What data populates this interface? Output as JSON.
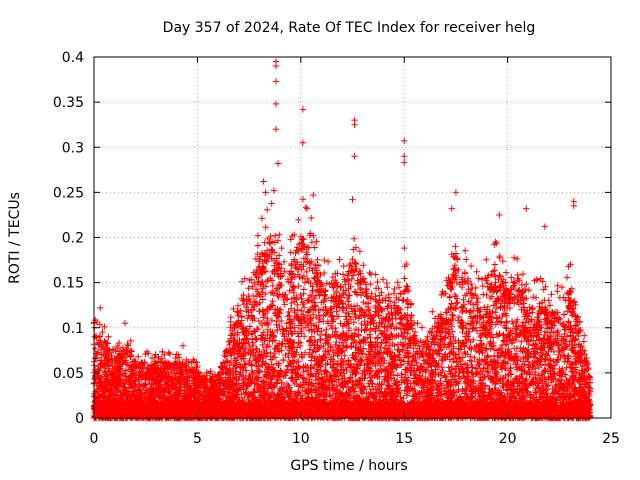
{
  "chart_data": {
    "type": "scatter",
    "title": "Day 357 of 2024, Rate Of TEC Index for receiver helg",
    "xlabel": "GPS time / hours",
    "ylabel": "ROTI / TECUs",
    "xlim": [
      0,
      25
    ],
    "ylim": [
      0,
      0.4
    ],
    "xticks": [
      "0",
      "5",
      "10",
      "15",
      "20",
      "25"
    ],
    "yticks": [
      "0",
      "0.05",
      "0.1",
      "0.15",
      "0.2",
      "0.25",
      "0.3",
      "0.35",
      "0.4"
    ],
    "grid": true,
    "marker": "plus",
    "color": "#ff0000",
    "notable_points": [
      {
        "x": 8.8,
        "y": 0.39
      },
      {
        "x": 8.8,
        "y": 0.395
      },
      {
        "x": 8.8,
        "y": 0.373
      },
      {
        "x": 8.8,
        "y": 0.348
      },
      {
        "x": 8.8,
        "y": 0.32
      },
      {
        "x": 8.9,
        "y": 0.282
      },
      {
        "x": 8.7,
        "y": 0.252
      },
      {
        "x": 10.1,
        "y": 0.342
      },
      {
        "x": 10.1,
        "y": 0.305
      },
      {
        "x": 12.6,
        "y": 0.33
      },
      {
        "x": 12.6,
        "y": 0.325
      },
      {
        "x": 12.6,
        "y": 0.29
      },
      {
        "x": 15.0,
        "y": 0.307
      },
      {
        "x": 15.0,
        "y": 0.29
      },
      {
        "x": 15.0,
        "y": 0.283
      },
      {
        "x": 17.5,
        "y": 0.25
      },
      {
        "x": 20.9,
        "y": 0.232
      },
      {
        "x": 23.2,
        "y": 0.24
      },
      {
        "x": 23.2,
        "y": 0.235
      },
      {
        "x": 8.2,
        "y": 0.262
      },
      {
        "x": 8.3,
        "y": 0.25
      },
      {
        "x": 10.6,
        "y": 0.247
      },
      {
        "x": 10.3,
        "y": 0.232
      },
      {
        "x": 12.5,
        "y": 0.242
      },
      {
        "x": 17.3,
        "y": 0.232
      },
      {
        "x": 19.6,
        "y": 0.225
      },
      {
        "x": 21.8,
        "y": 0.212
      },
      {
        "x": 1.5,
        "y": 0.105
      },
      {
        "x": 0.3,
        "y": 0.122
      },
      {
        "x": 0.0,
        "y": 0.105
      },
      {
        "x": 4.3,
        "y": 0.08
      },
      {
        "x": 3.4,
        "y": 0.07
      }
    ],
    "envelope": [
      {
        "x": 0.0,
        "ytop": 0.09
      },
      {
        "x": 0.5,
        "ytop": 0.085
      },
      {
        "x": 1.0,
        "ytop": 0.06
      },
      {
        "x": 1.5,
        "ytop": 0.08
      },
      {
        "x": 2.0,
        "ytop": 0.06
      },
      {
        "x": 3.0,
        "ytop": 0.06
      },
      {
        "x": 4.0,
        "ytop": 0.06
      },
      {
        "x": 5.0,
        "ytop": 0.05
      },
      {
        "x": 5.5,
        "ytop": 0.04
      },
      {
        "x": 6.0,
        "ytop": 0.045
      },
      {
        "x": 6.5,
        "ytop": 0.08
      },
      {
        "x": 7.0,
        "ytop": 0.12
      },
      {
        "x": 7.5,
        "ytop": 0.14
      },
      {
        "x": 8.0,
        "ytop": 0.17
      },
      {
        "x": 8.5,
        "ytop": 0.2
      },
      {
        "x": 9.0,
        "ytop": 0.17
      },
      {
        "x": 9.5,
        "ytop": 0.16
      },
      {
        "x": 10.0,
        "ytop": 0.2
      },
      {
        "x": 10.5,
        "ytop": 0.18
      },
      {
        "x": 11.0,
        "ytop": 0.14
      },
      {
        "x": 11.5,
        "ytop": 0.15
      },
      {
        "x": 12.0,
        "ytop": 0.14
      },
      {
        "x": 12.5,
        "ytop": 0.17
      },
      {
        "x": 13.0,
        "ytop": 0.15
      },
      {
        "x": 13.5,
        "ytop": 0.13
      },
      {
        "x": 14.0,
        "ytop": 0.13
      },
      {
        "x": 14.5,
        "ytop": 0.12
      },
      {
        "x": 15.0,
        "ytop": 0.16
      },
      {
        "x": 15.5,
        "ytop": 0.09
      },
      {
        "x": 16.0,
        "ytop": 0.08
      },
      {
        "x": 16.5,
        "ytop": 0.1
      },
      {
        "x": 17.0,
        "ytop": 0.12
      },
      {
        "x": 17.5,
        "ytop": 0.17
      },
      {
        "x": 18.0,
        "ytop": 0.15
      },
      {
        "x": 18.5,
        "ytop": 0.13
      },
      {
        "x": 19.0,
        "ytop": 0.15
      },
      {
        "x": 19.5,
        "ytop": 0.16
      },
      {
        "x": 20.0,
        "ytop": 0.13
      },
      {
        "x": 20.5,
        "ytop": 0.15
      },
      {
        "x": 21.0,
        "ytop": 0.12
      },
      {
        "x": 21.5,
        "ytop": 0.13
      },
      {
        "x": 22.0,
        "ytop": 0.11
      },
      {
        "x": 22.5,
        "ytop": 0.12
      },
      {
        "x": 23.0,
        "ytop": 0.14
      },
      {
        "x": 23.5,
        "ytop": 0.1
      },
      {
        "x": 24.0,
        "ytop": 0.04
      }
    ]
  }
}
